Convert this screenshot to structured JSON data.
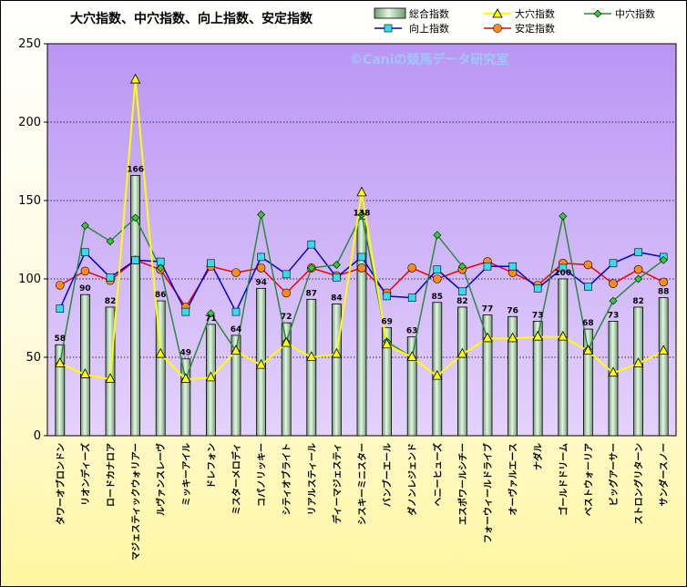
{
  "watermark": "©Caniの競馬データ研究室",
  "chart_data": {
    "type": "bar",
    "title": "大穴指数、中穴指数、向上指数、安定指数",
    "ylim": [
      0,
      250
    ],
    "yticks": [
      0,
      50,
      100,
      150,
      200,
      250
    ],
    "grid": true,
    "legend": "top-right",
    "categories": [
      "タワーオブロンドン",
      "リオンディーズ",
      "ロードカナロア",
      "マジェスティックウォリアー",
      "ルヴァンスレーヴ",
      "ミッキーアイル",
      "ドレフォン",
      "ミスターメロディ",
      "コパノリッキー",
      "シティオブライト",
      "リアルスティール",
      "ディーマジェスティ",
      "シスキーミニスター",
      "バンブーエール",
      "ダノンレジェンド",
      "ヘニーヒューズ",
      "エスポワールシチー",
      "フォーウィールドライブ",
      "オーヴァルエース",
      "ナダル",
      "ゴールドドリーム",
      "ベストウォーリア",
      "ビッグアーサー",
      "ストロングリターン",
      "サンダースノー"
    ],
    "series": [
      {
        "name": "総合指数",
        "type": "bar",
        "color": "#a8d8a8",
        "values": [
          58,
          90,
          82,
          166,
          86,
          49,
          71,
          64,
          94,
          72,
          87,
          84,
          138,
          69,
          63,
          85,
          82,
          77,
          76,
          73,
          100,
          68,
          73,
          82,
          88
        ],
        "labels": [
          "58",
          "90",
          "82",
          "166",
          "86",
          "49",
          "71",
          "64",
          "94",
          "72",
          "87",
          "84",
          "138",
          "69",
          "63",
          "85",
          "82",
          "77",
          "76",
          "73",
          "100",
          "68",
          "73",
          "82",
          "88"
        ]
      },
      {
        "name": "大穴指数",
        "type": "line",
        "color": "#ffff00",
        "marker": "triangle",
        "values": [
          46,
          39,
          36,
          227,
          52,
          36,
          37,
          54,
          45,
          59,
          50,
          52,
          155,
          58,
          50,
          38,
          52,
          62,
          62,
          63,
          63,
          54,
          40,
          46,
          54
        ]
      },
      {
        "name": "中穴指数",
        "type": "line",
        "color": "#2a8a3a",
        "marker": "diamond",
        "values": [
          46,
          134,
          124,
          139,
          107,
          36,
          78,
          54,
          141,
          60,
          107,
          109,
          141,
          60,
          50,
          128,
          108,
          62,
          62,
          63,
          140,
          55,
          86,
          100,
          112
        ]
      },
      {
        "name": "向上指数",
        "type": "line",
        "color": "#0000cc",
        "marker": "square",
        "values": [
          81,
          117,
          101,
          112,
          111,
          79,
          110,
          79,
          114,
          103,
          122,
          101,
          114,
          89,
          88,
          106,
          92,
          108,
          108,
          94,
          107,
          95,
          110,
          117,
          114
        ]
      },
      {
        "name": "安定指数",
        "type": "line",
        "color": "#ee0000",
        "marker": "circle",
        "values": [
          96,
          105,
          99,
          112,
          106,
          82,
          108,
          104,
          107,
          91,
          107,
          102,
          107,
          91,
          107,
          100,
          106,
          111,
          104,
          96,
          110,
          109,
          97,
          106,
          98
        ]
      }
    ]
  }
}
